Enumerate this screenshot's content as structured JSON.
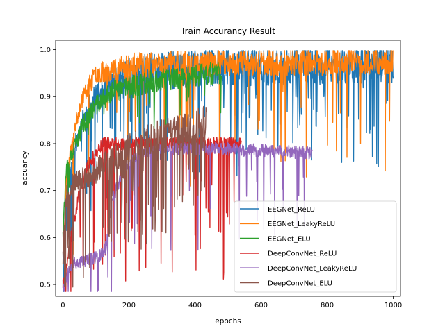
{
  "chart_data": {
    "type": "line",
    "title": "Train Accurancy Result",
    "xlabel": "epochs",
    "ylabel": "accuancy",
    "xlim": [
      -22,
      1022
    ],
    "ylim": [
      0.475,
      1.02
    ],
    "xticks": [
      0,
      200,
      400,
      600,
      800,
      1000
    ],
    "yticks": [
      0.5,
      0.6,
      0.7,
      0.8,
      0.9,
      1.0
    ],
    "ytick_labels": [
      "0.5",
      "0.6",
      "0.7",
      "0.8",
      "0.9",
      "1.0"
    ],
    "grid": false,
    "legend_position": "lower-right",
    "series": [
      {
        "name": "EEGNet_ReLU",
        "color": "#1f77b4",
        "epochs": 1000,
        "keypoints": [
          [
            0,
            0.52
          ],
          [
            10,
            0.7
          ],
          [
            30,
            0.78
          ],
          [
            60,
            0.85
          ],
          [
            100,
            0.9
          ],
          [
            150,
            0.93
          ],
          [
            250,
            0.95
          ],
          [
            400,
            0.96
          ],
          [
            600,
            0.965
          ],
          [
            1000,
            0.97
          ]
        ],
        "noise": [
          0.025,
          0.06
        ],
        "dip_probability": 0.09,
        "dip_range": [
          0.05,
          0.2
        ],
        "seed": 11
      },
      {
        "name": "EEGNet_LeakyReLU",
        "color": "#ff7f0e",
        "epochs": 1000,
        "keypoints": [
          [
            0,
            0.55
          ],
          [
            10,
            0.72
          ],
          [
            30,
            0.82
          ],
          [
            60,
            0.9
          ],
          [
            100,
            0.95
          ],
          [
            200,
            0.965
          ],
          [
            400,
            0.97
          ],
          [
            1000,
            0.975
          ]
        ],
        "noise": [
          0.02,
          0.04
        ],
        "dip_probability": 0.04,
        "dip_range": [
          0.05,
          0.26
        ],
        "seed": 23
      },
      {
        "name": "EEGNet_ELU",
        "color": "#2ca02c",
        "epochs": 480,
        "keypoints": [
          [
            0,
            0.62
          ],
          [
            10,
            0.74
          ],
          [
            30,
            0.78
          ],
          [
            60,
            0.84
          ],
          [
            100,
            0.88
          ],
          [
            150,
            0.91
          ],
          [
            250,
            0.93
          ],
          [
            400,
            0.945
          ],
          [
            480,
            0.95
          ]
        ],
        "noise": [
          0.025,
          0.035
        ],
        "dip_probability": 0.05,
        "dip_range": [
          0.03,
          0.08
        ],
        "seed": 37
      },
      {
        "name": "DeepConvNet_ReLU",
        "color": "#d62728",
        "epochs": 540,
        "keypoints": [
          [
            0,
            0.5
          ],
          [
            20,
            0.58
          ],
          [
            50,
            0.7
          ],
          [
            80,
            0.76
          ],
          [
            120,
            0.8
          ],
          [
            200,
            0.8
          ],
          [
            350,
            0.8
          ],
          [
            540,
            0.8
          ]
        ],
        "noise": [
          0.02,
          0.02
        ],
        "dip_probability": 0.1,
        "dip_range": [
          0.05,
          0.3
        ],
        "seed": 41
      },
      {
        "name": "DeepConvNet_LeakyReLU",
        "color": "#9467bd",
        "epochs": 755,
        "keypoints": [
          [
            0,
            0.49
          ],
          [
            20,
            0.54
          ],
          [
            60,
            0.55
          ],
          [
            110,
            0.56
          ],
          [
            130,
            0.58
          ],
          [
            150,
            0.68
          ],
          [
            180,
            0.74
          ],
          [
            230,
            0.78
          ],
          [
            300,
            0.79
          ],
          [
            450,
            0.79
          ],
          [
            755,
            0.78
          ]
        ],
        "noise": [
          0.02,
          0.02
        ],
        "dip_probability": 0.06,
        "dip_range": [
          0.04,
          0.22
        ],
        "seed": 53
      },
      {
        "name": "DeepConvNet_ELU",
        "color": "#8c564b",
        "epochs": 435,
        "keypoints": [
          [
            0,
            0.58
          ],
          [
            10,
            0.7
          ],
          [
            40,
            0.72
          ],
          [
            100,
            0.74
          ],
          [
            200,
            0.79
          ],
          [
            300,
            0.82
          ],
          [
            380,
            0.83
          ],
          [
            435,
            0.85
          ]
        ],
        "noise": [
          0.03,
          0.05
        ],
        "dip_probability": 0.15,
        "dip_range": [
          0.05,
          0.2
        ],
        "seed": 67
      }
    ]
  }
}
